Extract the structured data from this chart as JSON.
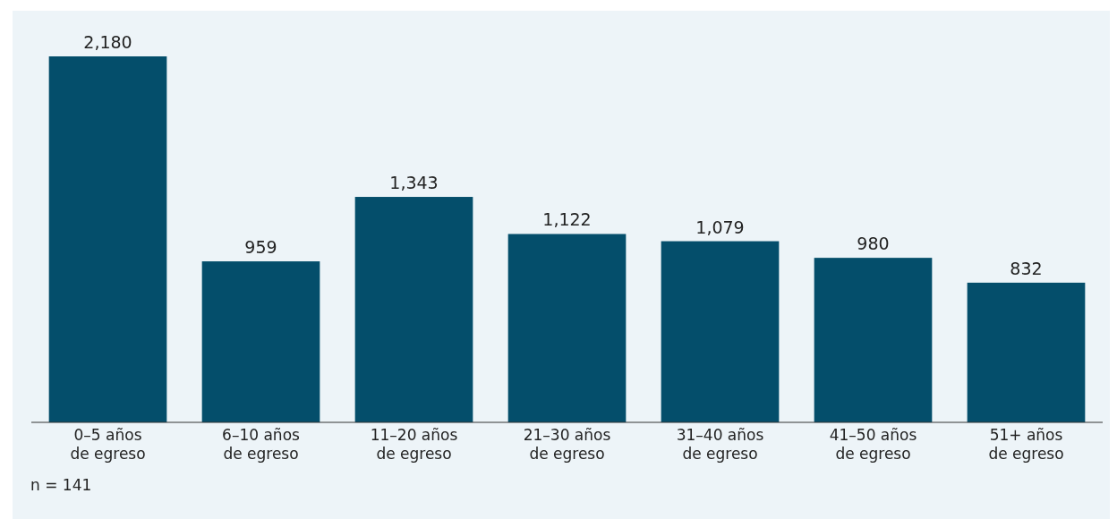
{
  "chart_data": {
    "type": "bar",
    "categories": [
      "0–5 años\nde egreso",
      "6–10 años\nde egreso",
      "11–20 años\nde egreso",
      "21–30 años\nde egreso",
      "31–40 años\nde egreso",
      "41–50 años\nde egreso",
      "51+ años\nde egreso"
    ],
    "values": [
      2180,
      959,
      1343,
      1122,
      1079,
      980,
      832
    ],
    "value_labels": [
      "2,180",
      "959",
      "1,343",
      "1,122",
      "1,079",
      "980",
      "832"
    ],
    "color": "#044e6b",
    "annotations": [
      "n = 141"
    ]
  }
}
